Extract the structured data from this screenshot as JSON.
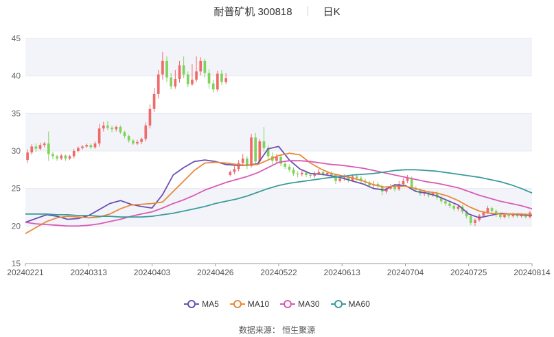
{
  "header": {
    "name": "耐普矿机 300818",
    "period": "日K"
  },
  "source_note": "数据来源： 恒生聚源",
  "chart_data": {
    "type": "candlestick",
    "ylim": [
      15,
      45
    ],
    "y_ticks": [
      15,
      20,
      25,
      30,
      35,
      40,
      45
    ],
    "x_ticks": [
      "20240221",
      "20240313",
      "20240403",
      "20240426",
      "20240522",
      "20240613",
      "20240704",
      "20240725",
      "20240814"
    ],
    "up_color": "#f06a6a",
    "down_color": "#7fd35a",
    "grid": "horizontal alternating bands",
    "legend_position": "bottom",
    "candles": [
      [
        28.8,
        29.8,
        28.4,
        30.2
      ],
      [
        29.8,
        30.6,
        29.5,
        30.9
      ],
      [
        30.6,
        30.3,
        29.9,
        31.0
      ],
      [
        30.3,
        30.8,
        30.1,
        31.1
      ],
      [
        30.8,
        31.0,
        30.5,
        31.2
      ],
      [
        31.0,
        29.6,
        28.7,
        32.6
      ],
      [
        29.6,
        29.3,
        28.9,
        29.9
      ],
      [
        29.3,
        29.0,
        28.7,
        29.5
      ],
      [
        29.0,
        29.4,
        28.8,
        29.6
      ],
      [
        29.4,
        29.0,
        28.7,
        29.5
      ],
      [
        29.0,
        29.3,
        28.8,
        29.5
      ],
      [
        29.3,
        30.0,
        29.0,
        30.3
      ],
      [
        30.0,
        30.4,
        29.8,
        30.6
      ],
      [
        30.4,
        30.6,
        30.2,
        30.8
      ],
      [
        30.6,
        30.8,
        30.4,
        31.0
      ],
      [
        30.8,
        30.5,
        30.3,
        31.0
      ],
      [
        30.5,
        31.0,
        30.3,
        31.3
      ],
      [
        31.0,
        33.0,
        30.6,
        33.6
      ],
      [
        33.0,
        33.4,
        32.6,
        33.9
      ],
      [
        33.4,
        33.1,
        32.8,
        34.0
      ],
      [
        33.1,
        32.9,
        32.5,
        33.4
      ],
      [
        32.9,
        33.2,
        32.6,
        33.4
      ],
      [
        33.2,
        32.5,
        32.3,
        33.4
      ],
      [
        32.5,
        32.0,
        31.7,
        32.7
      ],
      [
        32.0,
        31.4,
        31.1,
        32.2
      ],
      [
        31.4,
        31.0,
        30.8,
        31.6
      ],
      [
        31.0,
        31.2,
        30.8,
        31.5
      ],
      [
        31.2,
        31.6,
        30.9,
        31.8
      ],
      [
        31.6,
        33.4,
        31.3,
        33.8
      ],
      [
        33.4,
        35.6,
        33.0,
        36.2
      ],
      [
        35.6,
        37.6,
        35.2,
        38.4
      ],
      [
        37.6,
        40.2,
        37.0,
        40.8
      ],
      [
        40.2,
        42.0,
        39.5,
        43.2
      ],
      [
        42.0,
        39.8,
        39.2,
        42.6
      ],
      [
        39.8,
        38.6,
        38.2,
        40.4
      ],
      [
        38.6,
        39.6,
        38.3,
        40.8
      ],
      [
        39.6,
        41.4,
        39.1,
        42.0
      ],
      [
        41.4,
        40.2,
        39.7,
        42.6
      ],
      [
        40.2,
        38.9,
        38.5,
        40.6
      ],
      [
        38.9,
        39.5,
        38.7,
        41.6
      ],
      [
        39.5,
        40.6,
        39.2,
        42.6
      ],
      [
        40.6,
        42.0,
        40.1,
        42.5
      ],
      [
        42.0,
        40.4,
        39.8,
        42.3
      ],
      [
        40.4,
        39.0,
        38.3,
        40.9
      ],
      [
        39.0,
        38.2,
        37.8,
        39.5
      ],
      [
        38.2,
        40.3,
        37.9,
        40.7
      ],
      [
        40.3,
        39.2,
        38.8,
        40.8
      ],
      [
        39.2,
        39.7,
        38.9,
        40.4
      ],
      [
        26.8,
        27.2,
        26.6,
        27.4
      ],
      [
        27.2,
        27.6,
        26.9,
        28.0
      ],
      [
        27.6,
        28.4,
        27.3,
        28.8
      ],
      [
        28.4,
        29.0,
        28.0,
        29.6
      ],
      [
        29.0,
        28.0,
        27.6,
        29.3
      ],
      [
        28.0,
        31.8,
        27.8,
        32.3
      ],
      [
        31.8,
        28.6,
        28.2,
        32.4
      ],
      [
        28.6,
        31.3,
        28.3,
        31.6
      ],
      [
        31.3,
        30.4,
        29.9,
        33.2
      ],
      [
        30.4,
        29.3,
        28.9,
        30.8
      ],
      [
        29.3,
        28.7,
        28.2,
        29.8
      ],
      [
        28.7,
        29.2,
        28.4,
        29.6
      ],
      [
        29.2,
        28.3,
        28.0,
        29.6
      ],
      [
        28.3,
        27.9,
        27.6,
        28.6
      ],
      [
        27.9,
        27.5,
        27.2,
        28.2
      ],
      [
        27.5,
        27.0,
        26.7,
        27.8
      ],
      [
        27.0,
        26.9,
        26.5,
        27.3
      ],
      [
        26.9,
        27.1,
        26.6,
        27.4
      ],
      [
        27.1,
        26.8,
        26.5,
        27.4
      ],
      [
        26.8,
        26.7,
        26.4,
        27.1
      ],
      [
        26.7,
        27.0,
        26.4,
        27.3
      ],
      [
        27.0,
        27.2,
        26.8,
        27.6
      ],
      [
        27.2,
        26.9,
        26.6,
        27.5
      ],
      [
        26.9,
        27.1,
        26.7,
        27.3
      ],
      [
        27.1,
        26.8,
        26.5,
        27.3
      ],
      [
        26.8,
        26.0,
        25.6,
        27.0
      ],
      [
        26.0,
        26.3,
        25.8,
        26.7
      ],
      [
        26.3,
        26.5,
        26.0,
        26.9
      ],
      [
        26.5,
        26.1,
        25.8,
        26.8
      ],
      [
        26.1,
        26.6,
        25.9,
        26.9
      ],
      [
        26.6,
        26.4,
        26.1,
        27.0
      ],
      [
        26.4,
        26.0,
        25.7,
        26.7
      ],
      [
        26.0,
        25.8,
        25.4,
        26.3
      ],
      [
        25.8,
        25.4,
        25.1,
        26.0
      ],
      [
        25.4,
        25.6,
        25.1,
        26.0
      ],
      [
        25.6,
        25.3,
        24.9,
        25.9
      ],
      [
        25.3,
        24.6,
        24.1,
        25.5
      ],
      [
        24.6,
        25.0,
        24.3,
        25.3
      ],
      [
        25.0,
        25.3,
        24.8,
        25.6
      ],
      [
        25.3,
        24.9,
        24.6,
        25.6
      ],
      [
        24.9,
        25.6,
        24.7,
        26.0
      ],
      [
        25.6,
        26.0,
        25.3,
        26.4
      ],
      [
        26.0,
        26.4,
        25.7,
        26.8
      ],
      [
        26.4,
        25.0,
        24.8,
        26.6
      ],
      [
        25.0,
        24.8,
        24.5,
        25.3
      ],
      [
        24.8,
        24.3,
        24.0,
        25.0
      ],
      [
        24.3,
        24.5,
        24.0,
        24.8
      ],
      [
        24.5,
        24.1,
        23.8,
        24.7
      ],
      [
        24.1,
        24.4,
        23.9,
        24.6
      ],
      [
        24.4,
        23.8,
        23.5,
        24.6
      ],
      [
        23.8,
        23.3,
        23.0,
        24.0
      ],
      [
        23.3,
        23.0,
        22.7,
        23.5
      ],
      [
        23.0,
        22.7,
        22.4,
        23.2
      ],
      [
        22.7,
        22.3,
        22.0,
        22.9
      ],
      [
        22.3,
        22.6,
        22.0,
        22.8
      ],
      [
        22.6,
        21.9,
        21.6,
        22.8
      ],
      [
        21.9,
        21.3,
        21.0,
        22.1
      ],
      [
        21.3,
        20.4,
        20.1,
        21.5
      ],
      [
        20.4,
        20.8,
        20.0,
        21.0
      ],
      [
        20.8,
        21.4,
        20.6,
        21.6
      ],
      [
        21.4,
        21.8,
        21.2,
        22.0
      ],
      [
        21.8,
        22.4,
        21.6,
        22.7
      ],
      [
        22.4,
        22.0,
        21.7,
        22.6
      ],
      [
        22.0,
        21.5,
        21.2,
        22.2
      ],
      [
        21.5,
        21.2,
        20.9,
        21.7
      ],
      [
        21.2,
        21.5,
        21.0,
        21.7
      ],
      [
        21.5,
        21.3,
        21.0,
        21.7
      ],
      [
        21.3,
        21.6,
        21.1,
        21.8
      ],
      [
        21.6,
        21.3,
        21.1,
        21.8
      ],
      [
        21.3,
        21.5,
        21.1,
        21.7
      ],
      [
        21.5,
        21.2,
        21.0,
        21.7
      ],
      [
        21.2,
        21.8,
        21.0,
        22.0
      ]
    ],
    "series": [
      {
        "name": "MA5",
        "color": "#6a4fb3",
        "values": [
          20.5,
          21.0,
          21.5,
          21.3,
          20.9,
          21.0,
          21.4,
          22.2,
          23.0,
          23.4,
          22.9,
          22.6,
          22.4,
          24.2,
          26.8,
          27.8,
          28.6,
          28.8,
          28.6,
          28.2,
          28.1,
          28.1,
          28.3,
          30.3,
          30.6,
          28.8,
          27.6,
          27.0,
          26.9,
          26.7,
          26.4,
          26.0,
          25.6,
          25.0,
          24.8,
          25.5,
          25.4,
          24.6,
          24.4,
          24.0,
          23.4,
          22.8,
          21.6,
          21.1,
          21.4,
          21.7,
          21.6,
          21.5,
          21.4
        ]
      },
      {
        "name": "MA10",
        "color": "#e8883a",
        "values": [
          19.0,
          19.8,
          20.6,
          21.1,
          21.3,
          21.2,
          21.1,
          21.2,
          21.6,
          22.3,
          22.8,
          22.9,
          23.0,
          23.2,
          24.6,
          26.0,
          27.4,
          28.4,
          28.5,
          28.4,
          28.2,
          28.1,
          28.2,
          28.8,
          29.4,
          29.7,
          29.5,
          28.4,
          27.6,
          27.0,
          26.7,
          26.4,
          26.0,
          25.5,
          25.2,
          25.3,
          25.3,
          25.0,
          24.6,
          24.4,
          24.0,
          23.4,
          22.6,
          22.0,
          21.7,
          21.6,
          21.6,
          21.6,
          21.5
        ]
      },
      {
        "name": "MA30",
        "color": "#d95ab5",
        "values": [
          20.5,
          20.3,
          20.2,
          20.1,
          20.0,
          20.0,
          20.1,
          20.3,
          20.6,
          20.9,
          21.3,
          21.6,
          21.9,
          22.4,
          23.0,
          23.5,
          24.1,
          24.8,
          25.3,
          25.8,
          26.2,
          26.6,
          27.1,
          27.8,
          28.5,
          28.7,
          28.7,
          28.6,
          28.4,
          28.2,
          28.1,
          27.9,
          27.7,
          27.4,
          27.1,
          26.8,
          26.5,
          26.2,
          25.9,
          25.7,
          25.4,
          25.1,
          24.6,
          24.1,
          23.7,
          23.3,
          23.0,
          22.7,
          22.3
        ]
      },
      {
        "name": "MA60",
        "color": "#3b9b9b",
        "values": [
          21.6,
          21.6,
          21.6,
          21.5,
          21.5,
          21.4,
          21.4,
          21.3,
          21.3,
          21.2,
          21.2,
          21.2,
          21.3,
          21.5,
          21.7,
          22.0,
          22.3,
          22.6,
          23.0,
          23.3,
          23.6,
          24.0,
          24.5,
          25.0,
          25.4,
          25.7,
          25.9,
          26.1,
          26.3,
          26.5,
          26.6,
          26.8,
          26.9,
          27.0,
          27.2,
          27.4,
          27.5,
          27.5,
          27.4,
          27.3,
          27.1,
          26.9,
          26.7,
          26.5,
          26.2,
          25.9,
          25.5,
          25.0,
          24.4
        ]
      }
    ]
  }
}
